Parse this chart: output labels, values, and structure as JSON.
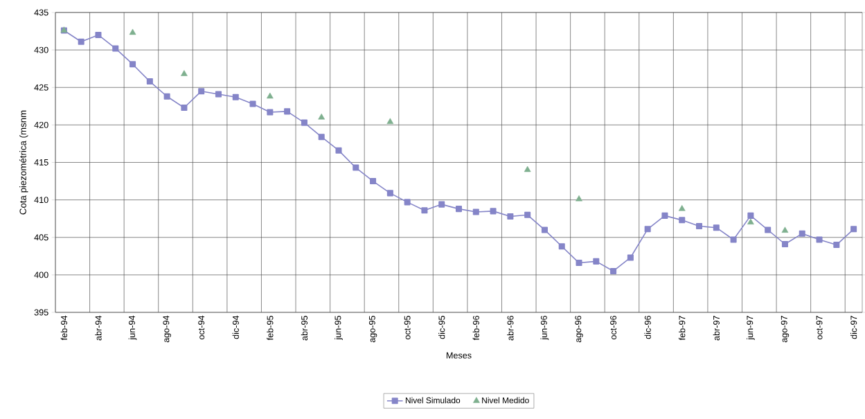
{
  "chart_data": {
    "type": "line",
    "xlabel": "Meses",
    "ylabel": "Cota piezométrica (msnm",
    "categories": [
      "feb-94",
      null,
      "abr-94",
      null,
      "jun-94",
      null,
      "ago-94",
      null,
      "oct-94",
      null,
      "dic-94",
      null,
      "feb-95",
      null,
      "abr-95",
      null,
      "jun-95",
      null,
      "ago-95",
      null,
      "oct-95",
      null,
      "dic-95",
      null,
      "feb-96",
      null,
      "abr-96",
      null,
      "jun-96",
      null,
      "ago-96",
      null,
      "oct-96",
      null,
      "dic-96",
      null,
      "feb-97",
      null,
      "abr-97",
      null,
      "jun-97",
      null,
      "ago-97",
      null,
      "oct-97",
      null,
      "dic-97"
    ],
    "series": [
      {
        "name": "Nivel Simulado",
        "marker": "square",
        "color": "#8585c8",
        "values": [
          432.6,
          431.1,
          432.0,
          430.2,
          428.1,
          425.8,
          423.8,
          422.3,
          424.5,
          424.1,
          423.7,
          422.8,
          421.7,
          421.8,
          420.3,
          418.4,
          416.6,
          414.3,
          412.5,
          410.9,
          409.7,
          408.6,
          409.4,
          408.8,
          408.4,
          408.5,
          407.8,
          408.0,
          406.0,
          403.8,
          401.6,
          401.8,
          400.5,
          402.3,
          406.1,
          407.9,
          407.3,
          406.5,
          406.3,
          404.7,
          407.9,
          406.0,
          404.1,
          405.5,
          404.7,
          404.0,
          406.1
        ]
      },
      {
        "name": "Nivel Medido",
        "type": "scatter",
        "marker": "triangle",
        "color": "#7fb08f",
        "values": [
          432.6,
          null,
          null,
          null,
          432.3,
          null,
          null,
          426.8,
          null,
          null,
          null,
          null,
          423.8,
          null,
          null,
          421.0,
          null,
          null,
          null,
          420.4,
          null,
          null,
          null,
          null,
          null,
          null,
          null,
          414.0,
          null,
          null,
          410.1,
          null,
          null,
          null,
          null,
          null,
          408.8,
          null,
          null,
          null,
          407.0,
          null,
          405.9,
          null,
          null,
          null,
          null
        ]
      }
    ],
    "ylim": [
      395,
      435
    ],
    "yticks": [
      395,
      400,
      405,
      410,
      415,
      420,
      425,
      430,
      435
    ],
    "grid": true,
    "legend": "bottom"
  }
}
